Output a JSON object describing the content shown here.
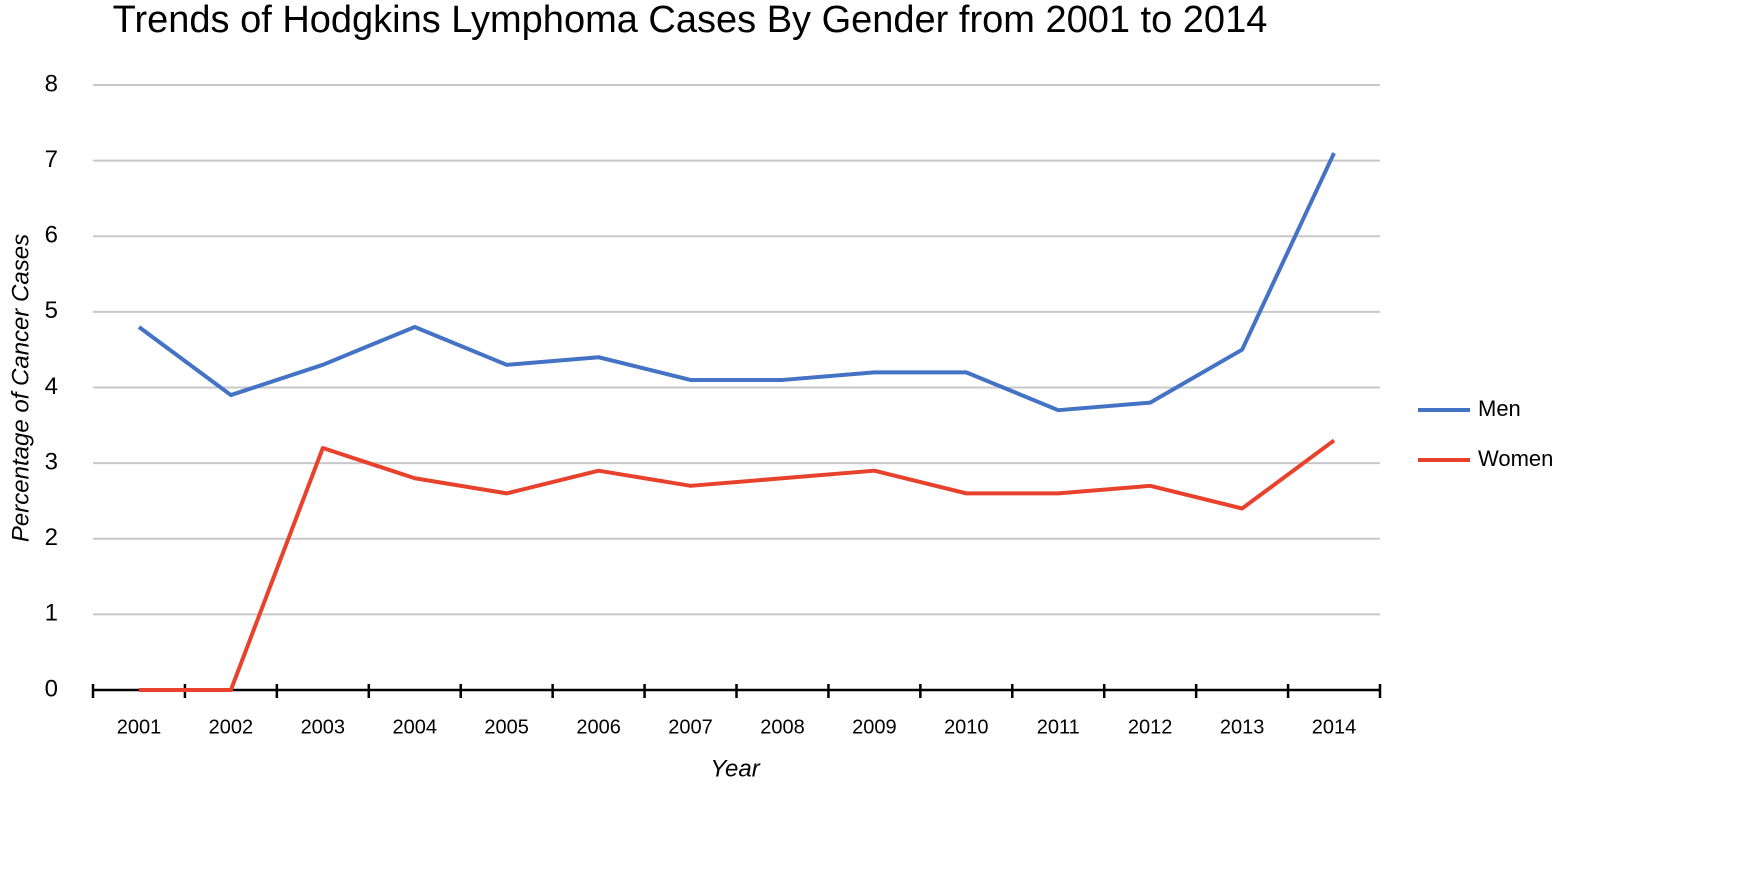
{
  "chart_data": {
    "type": "line",
    "title": "Trends of Hodgkins Lymphoma Cases By Gender from 2001 to 2014",
    "x_label": "Year",
    "y_label": "Percentage of Cancer Cases",
    "categories": [
      "2001",
      "2002",
      "2003",
      "2004",
      "2005",
      "2006",
      "2007",
      "2008",
      "2009",
      "2010",
      "2011",
      "2012",
      "2013",
      "2014"
    ],
    "series": [
      {
        "name": "Men",
        "color": "#4472c4",
        "values": [
          4.8,
          3.9,
          4.3,
          4.8,
          4.3,
          4.4,
          4.1,
          4.1,
          4.2,
          4.2,
          3.7,
          3.8,
          4.5,
          7.1
        ]
      },
      {
        "name": "Women",
        "color": "#e8412c",
        "values": [
          0,
          0,
          3.2,
          2.8,
          2.6,
          2.9,
          2.7,
          2.8,
          2.9,
          2.6,
          2.6,
          2.7,
          2.4,
          3.3
        ]
      }
    ],
    "ylim": [
      0,
      8
    ],
    "yticks": [
      0,
      1,
      2,
      3,
      4,
      5,
      6,
      7,
      8
    ],
    "grid": true,
    "legend": "right"
  }
}
